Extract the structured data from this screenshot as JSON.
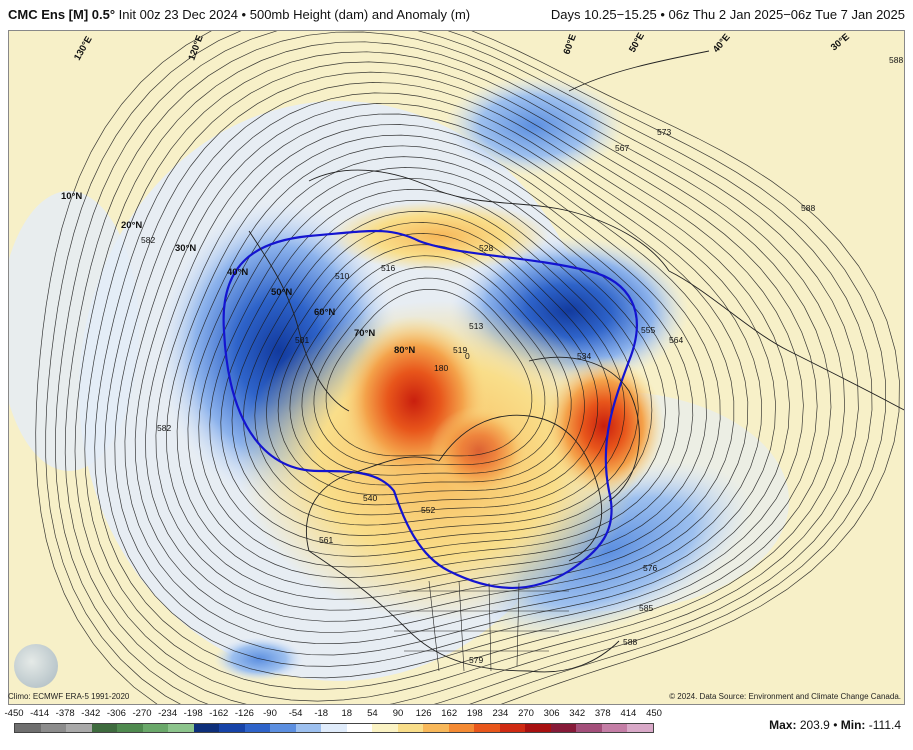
{
  "header": {
    "model": "CMC Ens [M] 0.5°",
    "init": "Init 00z 23 Dec 2024",
    "product": "500mb Height (dam) and Anomaly (m)",
    "valid": "Days 10.25−15.25 • 06z Thu 2 Jan 2025−06z Tue 7 Jan 2025"
  },
  "footer": {
    "climo": "Climo: ECMWF ERA-5 1991-2020",
    "credit": "© 2024. Data Source: Environment and Climate Change Canada.",
    "max_label": "Max:",
    "max_value": "203.9",
    "sep": "•",
    "min_label": "Min:",
    "min_value": "-111.4"
  },
  "colors": {
    "blue_contour": "#1414d0",
    "contour": "#1a1a1a",
    "land_bg": "#f7f0c8",
    "pos_anomaly": "#e8410d",
    "neg_anomaly": "#2e63c9"
  },
  "scale": {
    "labels": [
      "-450",
      "-414",
      "-378",
      "-342",
      "-306",
      "-270",
      "-234",
      "-198",
      "-162",
      "-126",
      "-90",
      "-54",
      "-18",
      "18",
      "54",
      "90",
      "126",
      "162",
      "198",
      "234",
      "270",
      "306",
      "342",
      "378",
      "414",
      "450"
    ],
    "colors": [
      "#6f6f6f",
      "#8c8c8c",
      "#a9a9a9",
      "#3e6b3e",
      "#4f8a4f",
      "#6aa86a",
      "#8cc48c",
      "#0d2f7a",
      "#1643a8",
      "#2e63c9",
      "#5c8fe0",
      "#9dc0ef",
      "#e0ecfb",
      "#ffffff",
      "#fbf3c4",
      "#f9de8a",
      "#f8b85a",
      "#f48a33",
      "#e8561b",
      "#cf2a12",
      "#a81010",
      "#861a38",
      "#a34f7a",
      "#c47ea6",
      "#d9a9c8"
    ]
  },
  "map": {
    "lat_labels": [
      "10°N",
      "20°N",
      "30°N",
      "40°N",
      "50°N",
      "60°N",
      "70°N",
      "80°N"
    ],
    "lon_labels": [
      "130°E",
      "120°E",
      "60°E",
      "50°E",
      "40°E",
      "30°E"
    ],
    "contour_labels": [
      "588",
      "588",
      "582",
      "573",
      "567",
      "516",
      "528",
      "510",
      "501",
      "519",
      "513",
      "534",
      "555",
      "564",
      "180",
      "0",
      "540",
      "552",
      "561",
      "576",
      "585",
      "579",
      "588",
      "582"
    ]
  }
}
